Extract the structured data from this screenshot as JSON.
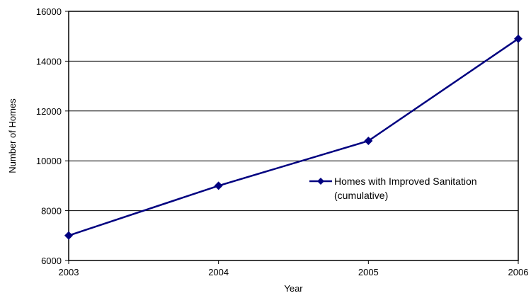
{
  "chart_data": {
    "type": "line",
    "x": [
      "2003",
      "2004",
      "2005",
      "2006"
    ],
    "series": [
      {
        "name": "Homes with Improved Sanitation (cumulative)",
        "name_lines": [
          "Homes with Improved Sanitation",
          "(cumulative)"
        ],
        "values": [
          7000,
          9000,
          10800,
          14900
        ],
        "color": "#000080"
      }
    ],
    "xlabel": "Year",
    "ylabel": "Number of Homes",
    "ylim": [
      6000,
      16000
    ],
    "yticks": [
      "6000",
      "8000",
      "10000",
      "12000",
      "14000",
      "16000"
    ],
    "grid": true,
    "legend": "right-center"
  }
}
